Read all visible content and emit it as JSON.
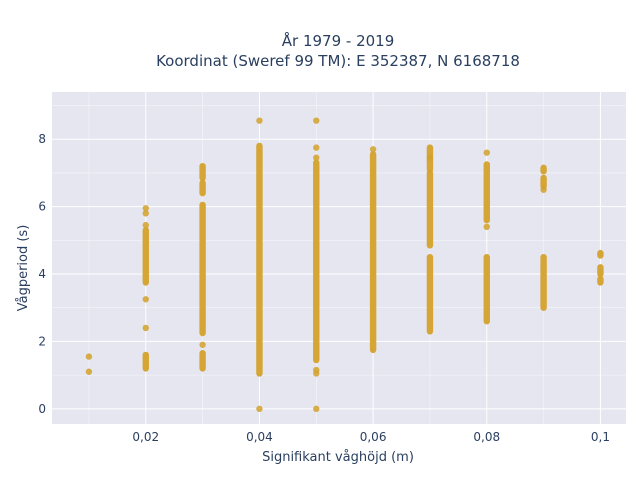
{
  "chart_data": {
    "type": "scatter",
    "title_line1": "År 1979 - 2019",
    "title_line2": "Koordinat (Sweref 99 TM): E 352387, N 6168718",
    "xlabel": "Signifikant våghöjd (m)",
    "ylabel": "Vågperiod (s)",
    "xlim": [
      0.0035,
      0.1045
    ],
    "ylim": [
      -0.45,
      9.4
    ],
    "x_ticks": [
      0.02,
      0.04,
      0.06,
      0.08,
      0.1
    ],
    "x_tick_labels": [
      "0,02",
      "0,04",
      "0,06",
      "0,08",
      "0,1"
    ],
    "y_ticks": [
      0,
      2,
      4,
      6,
      8
    ],
    "y_tick_labels": [
      "0",
      "2",
      "4",
      "6",
      "8"
    ],
    "grid": true,
    "colors": {
      "marker": "#d4a12a",
      "plot_bg": "#e5e6f0",
      "grid": "#ffffff"
    },
    "columns": [
      {
        "x": 0.01,
        "segments": [],
        "points": [
          1.1,
          1.55
        ]
      },
      {
        "x": 0.02,
        "segments": [
          [
            1.2,
            1.6
          ],
          [
            3.75,
            5.3
          ]
        ],
        "points": [
          2.4,
          3.25,
          5.45,
          5.8,
          5.95
        ]
      },
      {
        "x": 0.03,
        "segments": [
          [
            1.2,
            1.65
          ],
          [
            2.25,
            6.05
          ],
          [
            6.4,
            6.7
          ],
          [
            6.85,
            7.2
          ]
        ],
        "points": [
          1.9
        ]
      },
      {
        "x": 0.04,
        "segments": [
          [
            1.05,
            7.8
          ]
        ],
        "points": [
          0.0,
          8.55
        ]
      },
      {
        "x": 0.05,
        "segments": [
          [
            1.45,
            7.3
          ]
        ],
        "points": [
          0.0,
          1.05,
          1.15,
          7.45,
          7.75,
          8.55
        ]
      },
      {
        "x": 0.06,
        "segments": [
          [
            1.75,
            7.55
          ]
        ],
        "points": [
          7.7
        ]
      },
      {
        "x": 0.07,
        "segments": [
          [
            2.3,
            4.5
          ],
          [
            4.85,
            7.0
          ],
          [
            7.1,
            7.75
          ]
        ],
        "points": [
          7.45
        ]
      },
      {
        "x": 0.08,
        "segments": [
          [
            2.6,
            4.5
          ],
          [
            5.6,
            7.25
          ]
        ],
        "points": [
          5.4,
          7.6
        ]
      },
      {
        "x": 0.09,
        "segments": [
          [
            3.0,
            4.5
          ],
          [
            6.6,
            6.85
          ],
          [
            7.05,
            7.15
          ]
        ],
        "points": [
          6.5
        ]
      },
      {
        "x": 0.1,
        "segments": [
          [
            3.75,
            3.85
          ],
          [
            4.0,
            4.2
          ],
          [
            4.55,
            4.62
          ]
        ],
        "points": []
      }
    ]
  }
}
